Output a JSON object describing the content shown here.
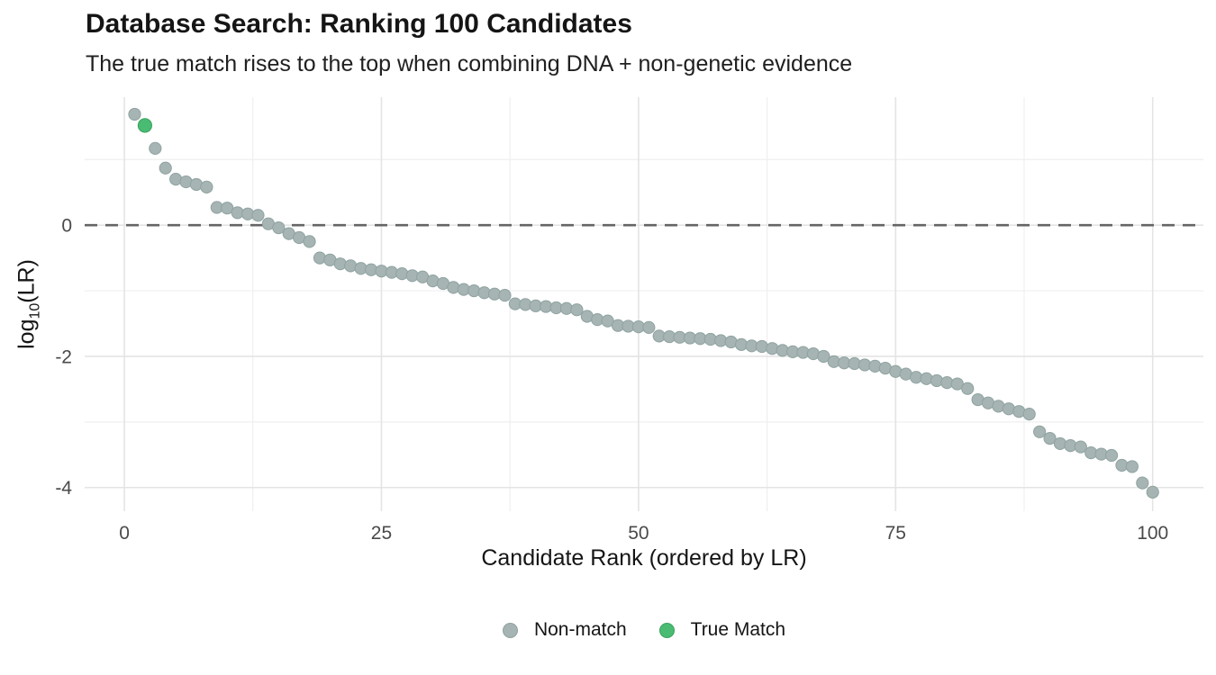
{
  "chart_data": {
    "type": "scatter",
    "title": "Database Search: Ranking 100 Candidates",
    "subtitle": "The true match rises to the top when combining DNA + non-genetic evidence",
    "xlabel": "Candidate Rank (ordered by LR)",
    "ylabel": "log10(LR)",
    "ylabel_rich": {
      "prefix": "log",
      "sub": "10",
      "suffix": "(LR)"
    },
    "x_ticks": [
      0,
      25,
      50,
      75,
      100
    ],
    "x_tick_labels": [
      "0",
      "25",
      "50",
      "75",
      "100"
    ],
    "x_minor_ticks": [
      12.5,
      37.5,
      62.5,
      87.5
    ],
    "y_ticks": [
      0,
      -2,
      -4
    ],
    "y_tick_labels": [
      "0",
      "-2",
      "-4"
    ],
    "y_minor_ticks": [
      1,
      -1,
      -3
    ],
    "xlim": [
      -3.86,
      104.93
    ],
    "ylim": [
      -4.36,
      1.95
    ],
    "grid": true,
    "reference_line_y": 0,
    "legend_position": "bottom",
    "first_rank": 1,
    "true_match_rank": 2,
    "series": [
      {
        "name": "Non-match",
        "color": "#a6b4b3",
        "stroke": "#8fa3a1"
      },
      {
        "name": "True Match",
        "color": "#4abb73",
        "stroke": "#38a35f"
      }
    ],
    "values": [
      1.69,
      1.52,
      1.17,
      0.87,
      0.7,
      0.66,
      0.62,
      0.58,
      0.27,
      0.26,
      0.19,
      0.17,
      0.15,
      0.02,
      -0.04,
      -0.13,
      -0.19,
      -0.25,
      -0.5,
      -0.53,
      -0.59,
      -0.62,
      -0.66,
      -0.68,
      -0.7,
      -0.72,
      -0.74,
      -0.77,
      -0.79,
      -0.85,
      -0.89,
      -0.95,
      -0.98,
      -1.0,
      -1.03,
      -1.05,
      -1.07,
      -1.2,
      -1.21,
      -1.23,
      -1.24,
      -1.26,
      -1.27,
      -1.29,
      -1.39,
      -1.44,
      -1.46,
      -1.53,
      -1.54,
      -1.55,
      -1.56,
      -1.69,
      -1.7,
      -1.71,
      -1.72,
      -1.73,
      -1.74,
      -1.76,
      -1.78,
      -1.82,
      -1.84,
      -1.85,
      -1.88,
      -1.91,
      -1.93,
      -1.94,
      -1.96,
      -2.0,
      -2.08,
      -2.1,
      -2.11,
      -2.13,
      -2.15,
      -2.18,
      -2.23,
      -2.27,
      -2.32,
      -2.34,
      -2.37,
      -2.4,
      -2.42,
      -2.49,
      -2.66,
      -2.71,
      -2.76,
      -2.8,
      -2.84,
      -2.88,
      -3.15,
      -3.25,
      -3.33,
      -3.36,
      -3.38,
      -3.47,
      -3.49,
      -3.51,
      -3.66,
      -3.68,
      -3.93,
      -4.07
    ]
  },
  "legend": {
    "items": [
      {
        "label": "Non-match",
        "color": "#a6b4b3",
        "border": "#8fa3a1"
      },
      {
        "label": "True Match",
        "color": "#4abb73",
        "border": "#38a35f"
      }
    ]
  },
  "colors": {
    "grid_major": "#e4e4e4",
    "grid_minor": "#efefef",
    "reference_line": "#656565",
    "tick_text": "#4a4a4a",
    "axis_text": "#151515"
  }
}
